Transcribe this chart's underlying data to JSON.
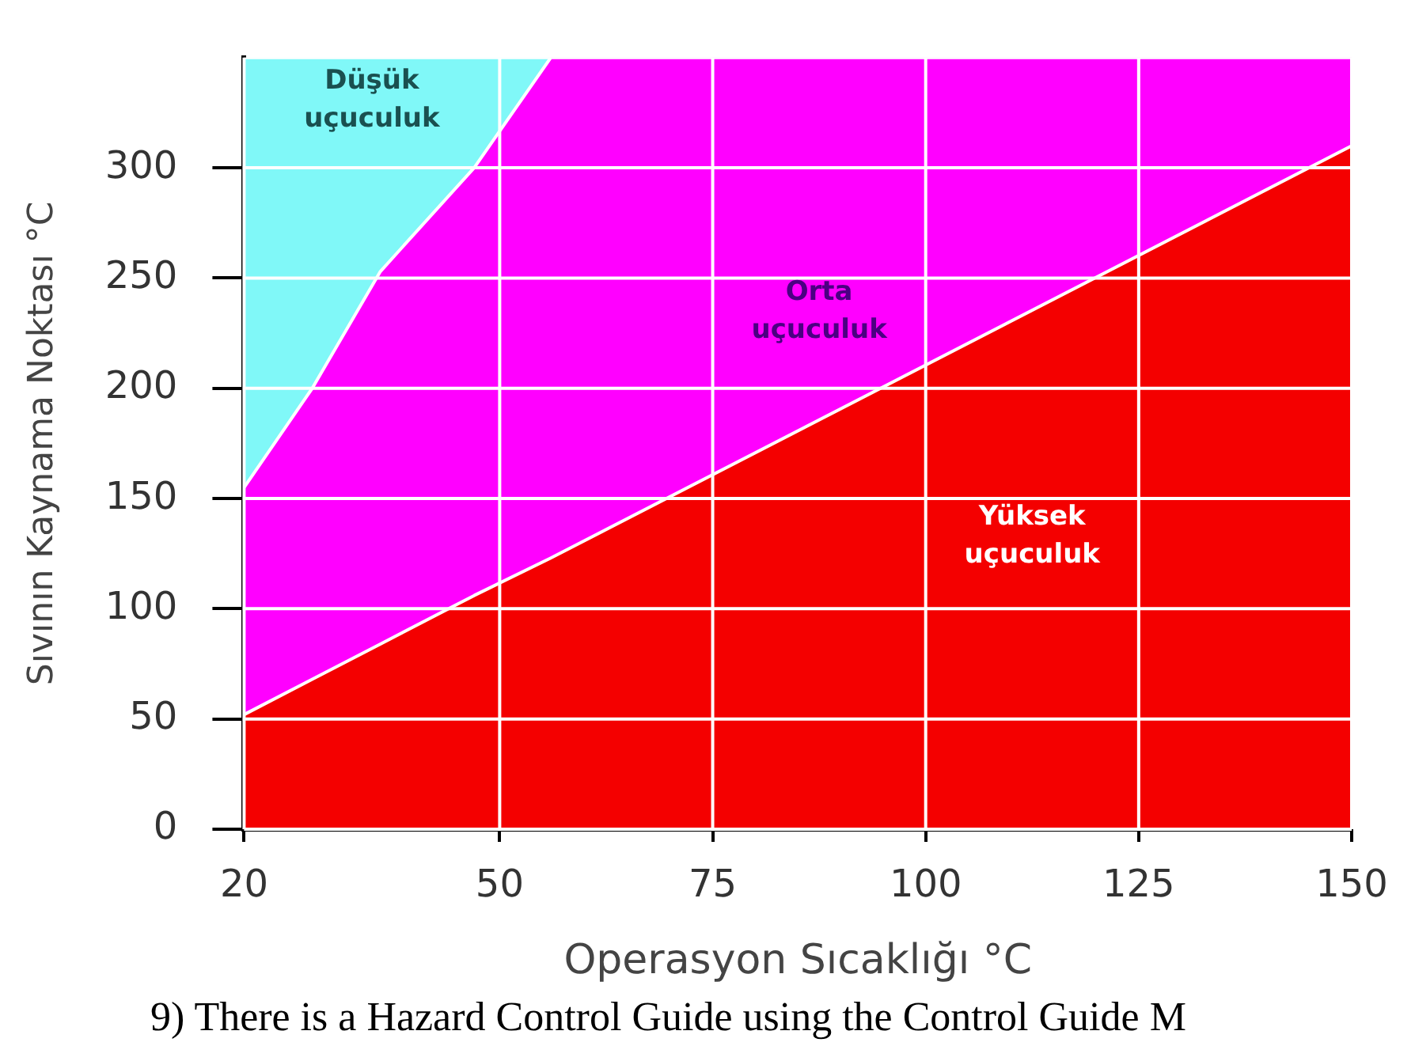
{
  "chart_data": {
    "type": "area",
    "xlabel": "Operasyon Sıcaklığı °C",
    "ylabel": "Sıvının Kaynama Noktası °C",
    "xlim": [
      20,
      150
    ],
    "xticks": [
      20,
      50,
      75,
      100,
      125,
      150
    ],
    "ylim": [
      0,
      350
    ],
    "yticks": [
      0,
      50,
      100,
      150,
      200,
      250,
      300
    ],
    "grid": true,
    "legend": false,
    "stacked": true,
    "x": [
      20,
      28,
      36,
      47,
      56,
      150
    ],
    "series": [
      {
        "name": "Yüksek uçuculuk",
        "color": "#f40000",
        "values": [
          52,
          68,
          84,
          106,
          123,
          310
        ]
      },
      {
        "name": "Orta uçuculuk",
        "color": "#ff00ff",
        "values": [
          103,
          132,
          169,
          194,
          227,
          40
        ]
      },
      {
        "name": "Düşük uçuculuk",
        "color": "#80f8f8",
        "values": [
          195,
          150,
          97,
          50,
          0,
          0
        ]
      }
    ],
    "annotations": [
      "9)  There is a Hazard Control Guide using the Control Guide M"
    ]
  }
}
